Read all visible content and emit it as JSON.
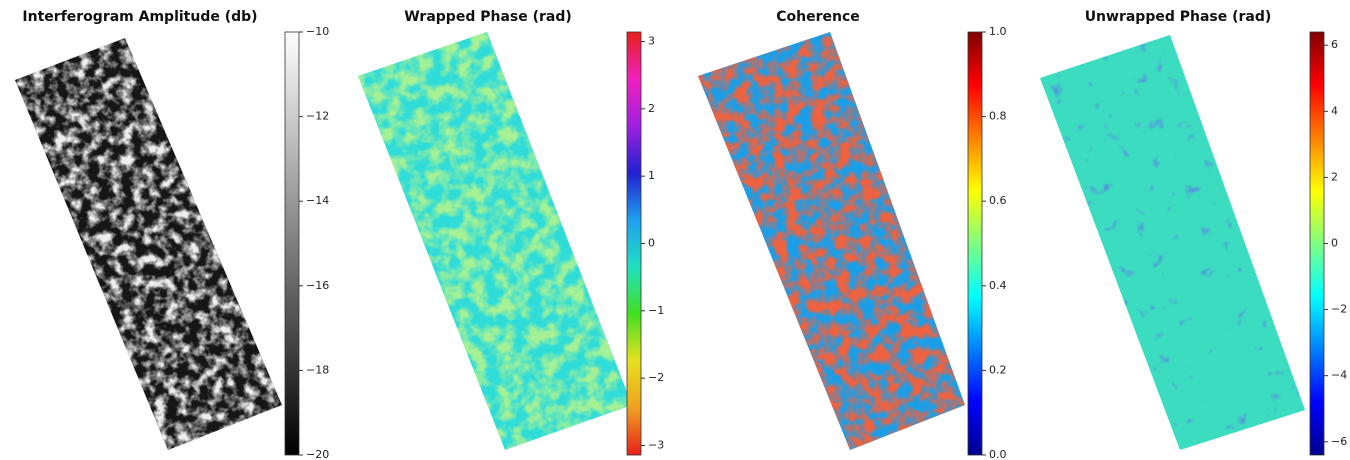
{
  "chart_data": [
    {
      "type": "image",
      "title": "Interferogram Amplitude (db)",
      "colormap": [
        "#000000",
        "#ffffff"
      ],
      "zlim": [
        -20,
        -10
      ],
      "zticks": [
        {
          "value": -10,
          "label": "−10"
        },
        {
          "value": -12,
          "label": "−12"
        },
        {
          "value": -14,
          "label": "−14"
        },
        {
          "value": -16,
          "label": "−16"
        },
        {
          "value": -18,
          "label": "−18"
        },
        {
          "value": -20,
          "label": "−20"
        }
      ]
    },
    {
      "type": "image",
      "title": "Wrapped Phase (rad)",
      "colormap": [
        "#e8201a",
        "#f0a020",
        "#e8e020",
        "#40e020",
        "#20e0c0",
        "#20a0f0",
        "#2020d0",
        "#a020e0",
        "#f020c0",
        "#e8201a"
      ],
      "zlim": [
        -3.14159,
        3.14159
      ],
      "zticks": [
        3,
        2,
        1,
        0,
        {
          "value": -1,
          "label": "−1"
        },
        {
          "value": -2,
          "label": "−2"
        },
        {
          "value": -3,
          "label": "−3"
        }
      ]
    },
    {
      "type": "image",
      "title": "Coherence",
      "colormap": [
        "#00008f",
        "#0000ff",
        "#0080ff",
        "#00ffff",
        "#80ff80",
        "#ffff00",
        "#ff8000",
        "#ff0000",
        "#800000"
      ],
      "zlim": [
        0,
        1
      ],
      "zticks": [
        {
          "value": 1,
          "label": "1.0"
        },
        {
          "value": 0.8,
          "label": "0.8"
        },
        {
          "value": 0.6,
          "label": "0.6"
        },
        {
          "value": 0.4,
          "label": "0.4"
        },
        {
          "value": 0.2,
          "label": "0.2"
        },
        {
          "value": 0,
          "label": "0.0"
        }
      ]
    },
    {
      "type": "image",
      "title": "Unwrapped Phase (rad)",
      "colormap": [
        "#00008f",
        "#0000ff",
        "#0080ff",
        "#00ffff",
        "#80ff80",
        "#ffff00",
        "#ff8000",
        "#ff0000",
        "#800000"
      ],
      "zlim": [
        -6.4,
        6.4
      ],
      "zticks": [
        6,
        4,
        2,
        0,
        {
          "value": -2,
          "label": "−2"
        },
        {
          "value": -4,
          "label": "−4"
        },
        {
          "value": -6,
          "label": "−6"
        }
      ]
    }
  ]
}
